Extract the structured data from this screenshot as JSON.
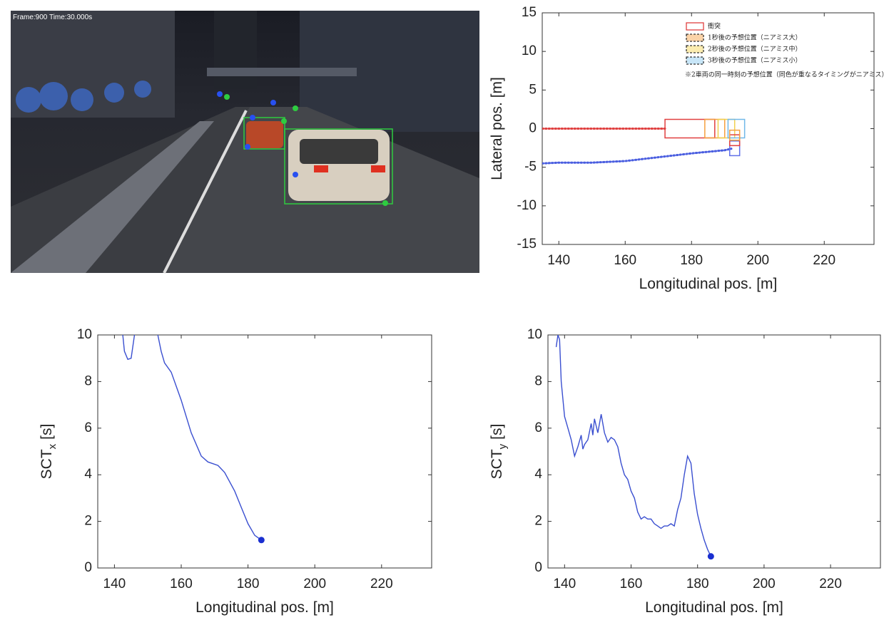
{
  "image": {
    "overlay_text": "Frame:900 Time:30.000s"
  },
  "chart_data": [
    {
      "type": "line",
      "xlabel": "Longitudinal pos. [m]",
      "ylabel": "Lateral pos. [m]",
      "xlim": [
        135,
        235
      ],
      "xticks": [
        140,
        160,
        180,
        200,
        220
      ],
      "ylim": [
        -15,
        15
      ],
      "yticks": [
        -15,
        -10,
        -5,
        0,
        5,
        10,
        15
      ],
      "series": [
        {
          "color": "#e04040",
          "linestyle": "dotted",
          "x": [
            135,
            150,
            165,
            172
          ],
          "values": [
            0,
            0,
            0,
            0
          ]
        },
        {
          "color": "#4a5ee0",
          "linestyle": "dotted",
          "x": [
            135,
            140,
            150,
            160,
            170,
            180,
            185,
            190,
            192
          ],
          "values": [
            -4.5,
            -4.4,
            -4.4,
            -4.2,
            -3.7,
            -3.2,
            -3.0,
            -2.8,
            -2.6
          ]
        }
      ],
      "boxes": [
        {
          "x0": 172,
          "x1": 187,
          "y0": -1.2,
          "y1": 1.2,
          "color": "#e04040",
          "fill": "none"
        },
        {
          "x0": 184,
          "x1": 190,
          "y0": -1.2,
          "y1": 1.2,
          "color": "#f5a040",
          "fill": "none"
        },
        {
          "x0": 188,
          "x1": 193,
          "y0": -1.2,
          "y1": 1.2,
          "color": "#f0d050",
          "fill": "none"
        },
        {
          "x0": 191,
          "x1": 196,
          "y0": -1.2,
          "y1": 1.2,
          "color": "#70b8e8",
          "fill": "none"
        },
        {
          "x0": 191.5,
          "x1": 194.5,
          "y0": -3.5,
          "y1": -1.6,
          "color": "#6070e8",
          "fill": "none"
        },
        {
          "x0": 191.5,
          "x1": 194.5,
          "y0": -2.2,
          "y1": -0.8,
          "color": "#e04040",
          "fill": "none"
        },
        {
          "x0": 191.5,
          "x1": 194.5,
          "y0": -1.5,
          "y1": -0.2,
          "color": "#f5a040",
          "fill": "none"
        }
      ],
      "legend": [
        {
          "label": "衝突",
          "color": "#e04040",
          "fill": "#ffffff",
          "dashed": false
        },
        {
          "label": "1秒後の予想位置（ニアミス大）",
          "color": "#333333",
          "fill": "#fbd3a8",
          "dashed": true
        },
        {
          "label": "2秒後の予想位置（ニアミス中）",
          "color": "#333333",
          "fill": "#fbecb0",
          "dashed": true
        },
        {
          "label": "3秒後の予想位置（ニアミス小）",
          "color": "#333333",
          "fill": "#c8e6f8",
          "dashed": true
        }
      ],
      "legend_note": "※2車両の同一時刻の予想位置（同色が重なるタイミングがニアミス）"
    },
    {
      "type": "line",
      "xlabel": "Longitudinal pos. [m]",
      "ylabel": {
        "text": "SCT",
        "subscript": "x",
        "unit": "[s]"
      },
      "xlim": [
        135,
        235
      ],
      "xticks": [
        140,
        160,
        180,
        200,
        220
      ],
      "ylim": [
        0,
        10
      ],
      "yticks": [
        0,
        2,
        4,
        6,
        8,
        10
      ],
      "series": [
        {
          "color": "#3a4fd0",
          "linestyle": "solid",
          "x": [
            142.5,
            143,
            144,
            145,
            146,
            150,
            153,
            154,
            155,
            157,
            160,
            163,
            166,
            168,
            171,
            173,
            176,
            178,
            180,
            182,
            184
          ],
          "values": [
            10,
            9.3,
            8.95,
            9.0,
            10,
            null,
            10,
            9.3,
            8.8,
            8.4,
            7.2,
            5.8,
            4.8,
            4.55,
            4.4,
            4.1,
            3.3,
            2.6,
            1.9,
            1.4,
            1.2
          ]
        }
      ],
      "marker": {
        "x": 184,
        "y": 1.2,
        "color": "#1a2fd0"
      }
    },
    {
      "type": "line",
      "xlabel": "Longitudinal pos. [m]",
      "ylabel": {
        "text": "SCT",
        "subscript": "y",
        "unit": "[s]"
      },
      "xlim": [
        135,
        235
      ],
      "xticks": [
        140,
        160,
        180,
        200,
        220
      ],
      "ylim": [
        0,
        10
      ],
      "yticks": [
        0,
        2,
        4,
        6,
        8,
        10
      ],
      "series": [
        {
          "color": "#3a4fd0",
          "linestyle": "solid",
          "x": [
            137.5,
            138,
            138.5,
            139,
            140,
            141,
            142,
            143,
            144,
            145,
            145.5,
            146,
            147,
            148,
            148.5,
            149,
            150,
            151,
            152,
            153,
            154,
            155,
            156,
            157,
            158,
            159,
            160,
            161,
            162,
            163,
            164,
            165,
            166,
            167,
            168,
            169,
            170,
            171,
            172,
            173,
            174,
            175,
            176,
            177,
            178,
            179,
            180,
            181,
            182,
            183,
            184
          ],
          "values": [
            9.5,
            10,
            9.8,
            8,
            6.5,
            6.0,
            5.5,
            4.8,
            5.2,
            5.7,
            5.1,
            5.3,
            5.5,
            6.2,
            5.7,
            6.4,
            5.8,
            6.6,
            5.8,
            5.4,
            5.6,
            5.5,
            5.2,
            4.5,
            4.0,
            3.8,
            3.3,
            3.0,
            2.4,
            2.1,
            2.2,
            2.1,
            2.1,
            1.9,
            1.8,
            1.7,
            1.8,
            1.8,
            1.9,
            1.8,
            2.5,
            3.0,
            4.0,
            4.8,
            4.5,
            3.2,
            2.3,
            1.7,
            1.2,
            0.8,
            0.5
          ]
        }
      ],
      "marker": {
        "x": 184,
        "y": 0.5,
        "color": "#1a2fd0"
      }
    }
  ]
}
